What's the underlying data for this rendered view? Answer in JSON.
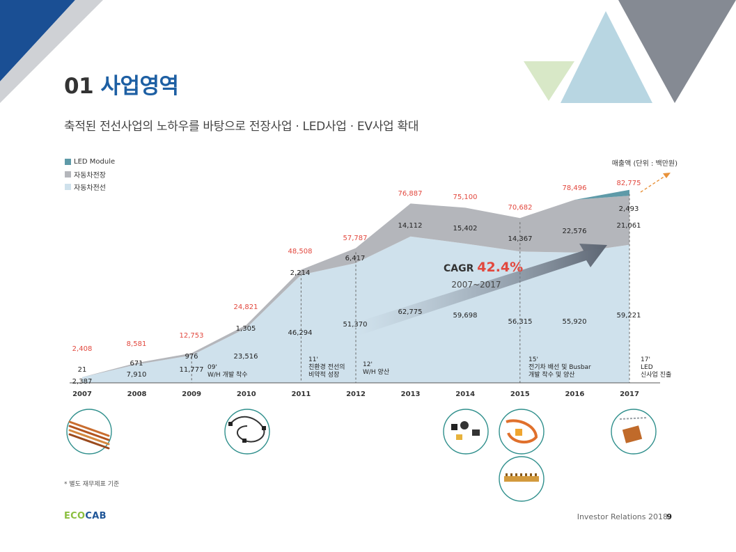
{
  "page": {
    "number_label": "01",
    "title": "사업영역",
    "subtitle": "축적된 전선사업의 노하우를 바탕으로 전장사업 · LED사업 · EV사업 확대",
    "unit_note": "매출액 (단위 : 백만원)",
    "footnote": "* 별도 재무제표 기준",
    "logo_eco": "ECO",
    "logo_cab": "CAB",
    "footer_text": "Investor Relations 2018",
    "page_number": "9"
  },
  "colors": {
    "led_module": "#5e9aa8",
    "harness": "#b4b6bb",
    "wire": "#cfe1ec",
    "total_label": "#e2473d",
    "navy": "#1a4f94",
    "deco_gray": "#858a93",
    "deco_lightblue": "#b8d6e2",
    "deco_green": "#d8e8c7",
    "arrow_dashed": "#e8923a"
  },
  "chart_data": {
    "type": "area",
    "title": "",
    "stacked": true,
    "categories": [
      "2007",
      "2008",
      "2009",
      "2010",
      "2011",
      "2012",
      "2013",
      "2014",
      "2015",
      "2016",
      "2017"
    ],
    "series": [
      {
        "name": "자동차전선",
        "values": [
          2387,
          7910,
          11777,
          23516,
          46294,
          51370,
          62775,
          59698,
          56315,
          55920,
          59221
        ],
        "labels": [
          "2,387",
          "7,910",
          "11,777",
          "23,516",
          "46,294",
          "51,370",
          "62,775",
          "59,698",
          "56,315",
          "55,920",
          "59,221"
        ]
      },
      {
        "name": "자동차전장",
        "values": [
          21,
          671,
          976,
          1305,
          2214,
          6417,
          14112,
          15402,
          14367,
          22576,
          21061
        ],
        "labels": [
          "21",
          "671",
          "976",
          "1,305",
          "2,214",
          "6,417",
          "14,112",
          "15,402",
          "14,367",
          "22,576",
          "21,061"
        ]
      },
      {
        "name": "LED Module",
        "values": [
          0,
          0,
          0,
          0,
          0,
          0,
          0,
          0,
          0,
          0,
          2493
        ],
        "labels": [
          "",
          "",
          "",
          "",
          "",
          "",
          "",
          "",
          "",
          "",
          "2,493"
        ]
      }
    ],
    "totals": [
      2408,
      8581,
      12753,
      24821,
      48508,
      57787,
      76887,
      75100,
      70682,
      78496,
      82775
    ],
    "total_labels": [
      "2,408",
      "8,581",
      "12,753",
      "24,821",
      "48,508",
      "57,787",
      "76,887",
      "75,100",
      "70,682",
      "78,496",
      "82,775"
    ],
    "legend": [
      "LED Module",
      "자동차전장",
      "자동차전선"
    ],
    "legend_position": "top-left",
    "cagr": {
      "label": "CAGR",
      "value": "42.4%",
      "period": "2007~2017"
    },
    "milestones": [
      {
        "year": "2009",
        "line1": "09'",
        "line2": "W/H 개발 착수",
        "line3": ""
      },
      {
        "year": "2011",
        "line1": "11'",
        "line2": "친환경 전선의",
        "line3": "비약적 성장"
      },
      {
        "year": "2012",
        "line1": "12'",
        "line2": "W/H 양산",
        "line3": ""
      },
      {
        "year": "2015",
        "line1": "15'",
        "line2": "전기차 배선 및 Busbar",
        "line3": "개발 착수 및 양산"
      },
      {
        "year": "2017",
        "line1": "17'",
        "line2": "LED",
        "line3": "신사업 진출"
      }
    ],
    "product_images": [
      {
        "year": "2007",
        "name": "wire-cables-image"
      },
      {
        "year": "2010",
        "name": "wire-harness-image"
      },
      {
        "year": "2014",
        "name": "connectors-image"
      },
      {
        "year": "2015",
        "name": "ev-harness-image"
      },
      {
        "year": "2015",
        "name": "busbar-image"
      },
      {
        "year": "2017",
        "name": "led-module-image"
      }
    ]
  }
}
